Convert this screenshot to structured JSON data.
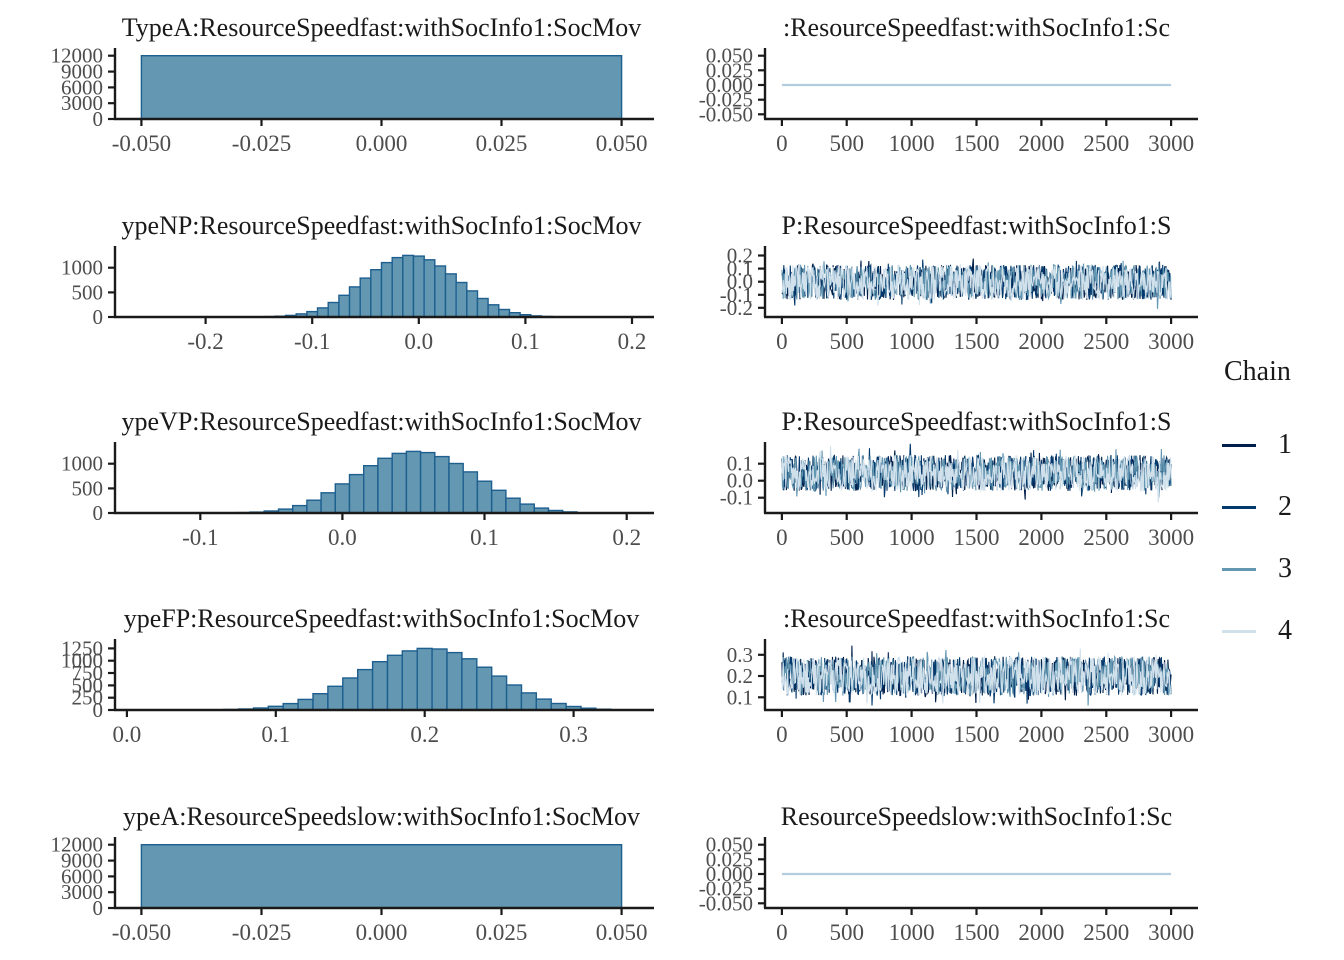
{
  "figure": {
    "background": "#ffffff",
    "description": "MCMC posterior diagnostics: histograms (left) and trace plots (right) for 5 parameters, 4 chains"
  },
  "colors": {
    "hist_fill": "#6497b1",
    "hist_stroke": "#1d5f8f",
    "axis": "#1a1a1a",
    "tick_label": "#4d4d4d",
    "title": "#1a1a1a",
    "flat_line": "#b3cde0",
    "chains": [
      "#011f4b",
      "#03396c",
      "#6497b1",
      "#d1e1ec"
    ]
  },
  "legend": {
    "title": "Chain",
    "items": [
      {
        "label": "1",
        "color": "#011f4b"
      },
      {
        "label": "2",
        "color": "#03396c"
      },
      {
        "label": "3",
        "color": "#6497b1"
      },
      {
        "label": "4",
        "color": "#d1e1ec"
      }
    ]
  },
  "chart_data": [
    {
      "id": "hist-row1",
      "type": "histogram",
      "row": 0,
      "col": "left",
      "title": "TypeA:ResourceSpeedfast:withSocInfo1:SocMov",
      "xlim": [
        -0.0555,
        0.0555
      ],
      "ylim": [
        0,
        12900
      ],
      "xticks": [
        -0.05,
        -0.025,
        0.0,
        0.025,
        0.05
      ],
      "xtick_labels": [
        "-0.050",
        "-0.025",
        "0.000",
        "0.025",
        "0.050"
      ],
      "yticks": [
        0,
        3000,
        6000,
        9000,
        12000
      ],
      "ytick_labels": [
        "0",
        "3000",
        "6000",
        "9000",
        "12000"
      ],
      "bins": {
        "start": -0.05,
        "width": 0.1,
        "counts": [
          12000
        ]
      }
    },
    {
      "id": "trace-row1",
      "type": "trace",
      "row": 0,
      "col": "right",
      "title": ":ResourceSpeedfast:withSocInfo1:Sc",
      "xlim": [
        -130,
        3130
      ],
      "ylim": [
        -0.058,
        0.058
      ],
      "xticks": [
        0,
        500,
        1000,
        1500,
        2000,
        2500,
        3000
      ],
      "xtick_labels": [
        "0",
        "500",
        "1000",
        "1500",
        "2000",
        "2500",
        "3000"
      ],
      "yticks": [
        0.05,
        0.025,
        0.0,
        -0.025,
        -0.05
      ],
      "ytick_labels": [
        "0.050",
        "0.025",
        "0.000",
        "-0.025",
        "-0.050"
      ],
      "series": {
        "flat": true,
        "center": 0.0,
        "amplitude": 0.0,
        "x_range": [
          0,
          3000
        ],
        "n_iterations": 3000,
        "n_chains": 4,
        "seed": 11
      }
    },
    {
      "id": "hist-row2",
      "type": "histogram",
      "row": 1,
      "col": "left",
      "title": "ypeNP:ResourceSpeedfast:withSocInfo1:SocMov",
      "xlim": [
        -0.285,
        0.215
      ],
      "ylim": [
        0,
        1380
      ],
      "xticks": [
        -0.2,
        -0.1,
        0.0,
        0.1,
        0.2
      ],
      "xtick_labels": [
        "-0.2",
        "-0.1",
        "0.0",
        "0.1",
        "0.2"
      ],
      "yticks": [
        0,
        500,
        1000
      ],
      "ytick_labels": [
        "0",
        "500",
        "1000"
      ],
      "bins": {
        "start": -0.155,
        "width": 0.01,
        "counts": [
          4,
          8,
          16,
          32,
          62,
          110,
          185,
          295,
          440,
          610,
          790,
          960,
          1105,
          1205,
          1250,
          1235,
          1160,
          1035,
          875,
          700,
          530,
          375,
          248,
          152,
          88,
          47,
          23,
          11,
          5,
          2
        ]
      }
    },
    {
      "id": "trace-row2",
      "type": "trace",
      "row": 1,
      "col": "right",
      "title": "P:ResourceSpeedfast:withSocInfo1:S",
      "xlim": [
        -130,
        3130
      ],
      "ylim": [
        -0.27,
        0.25
      ],
      "xticks": [
        0,
        500,
        1000,
        1500,
        2000,
        2500,
        3000
      ],
      "xtick_labels": [
        "0",
        "500",
        "1000",
        "1500",
        "2000",
        "2500",
        "3000"
      ],
      "yticks": [
        0.2,
        0.1,
        0.0,
        -0.1,
        -0.2
      ],
      "ytick_labels": [
        "0.2",
        "0.1",
        "0.0",
        "-0.1",
        "-0.2"
      ],
      "series": {
        "flat": false,
        "center": -0.005,
        "amplitude": 0.135,
        "x_range": [
          0,
          3000
        ],
        "n_iterations": 3000,
        "n_chains": 4,
        "seed": 21
      }
    },
    {
      "id": "hist-row3",
      "type": "histogram",
      "row": 2,
      "col": "left",
      "title": "ypeVP:ResourceSpeedfast:withSocInfo1:SocMov",
      "xlim": [
        -0.16,
        0.215
      ],
      "ylim": [
        0,
        1380
      ],
      "xticks": [
        -0.1,
        0.0,
        0.1,
        0.2
      ],
      "xtick_labels": [
        "-0.1",
        "0.0",
        "0.1",
        "0.2"
      ],
      "yticks": [
        0,
        500,
        1000
      ],
      "ytick_labels": [
        "0",
        "500",
        "1000"
      ],
      "bins": {
        "start": -0.075,
        "width": 0.01,
        "counts": [
          8,
          18,
          40,
          80,
          150,
          260,
          410,
          590,
          780,
          960,
          1110,
          1210,
          1250,
          1225,
          1145,
          1005,
          835,
          645,
          460,
          300,
          180,
          100,
          50,
          22
        ]
      }
    },
    {
      "id": "trace-row3",
      "type": "trace",
      "row": 2,
      "col": "right",
      "title": "P:ResourceSpeedfast:withSocInfo1:S",
      "xlim": [
        -130,
        3130
      ],
      "ylim": [
        -0.19,
        0.21
      ],
      "xticks": [
        0,
        500,
        1000,
        1500,
        2000,
        2500,
        3000
      ],
      "xtick_labels": [
        "0",
        "500",
        "1000",
        "1500",
        "2000",
        "2500",
        "3000"
      ],
      "yticks": [
        0.1,
        0.0,
        -0.1
      ],
      "ytick_labels": [
        "0.1",
        "0.0",
        "-0.1"
      ],
      "series": {
        "flat": false,
        "center": 0.045,
        "amplitude": 0.105,
        "x_range": [
          0,
          3000
        ],
        "n_iterations": 3000,
        "n_chains": 4,
        "seed": 31
      }
    },
    {
      "id": "hist-row4",
      "type": "histogram",
      "row": 3,
      "col": "left",
      "title": "ypeFP:ResourceSpeedfast:withSocInfo1:SocMov",
      "xlim": [
        -0.008,
        0.35
      ],
      "ylim": [
        0,
        1380
      ],
      "xticks": [
        0.0,
        0.1,
        0.2,
        0.3
      ],
      "xtick_labels": [
        "0.0",
        "0.1",
        "0.2",
        "0.3"
      ],
      "yticks": [
        0,
        250,
        500,
        750,
        1000,
        1250
      ],
      "ytick_labels": [
        "0",
        "250",
        "500",
        "750",
        "1000",
        "1250"
      ],
      "bins": {
        "start": 0.055,
        "width": 0.01,
        "counts": [
          5,
          10,
          20,
          40,
          75,
          130,
          215,
          330,
          480,
          650,
          820,
          980,
          1110,
          1200,
          1250,
          1238,
          1165,
          1040,
          868,
          688,
          508,
          348,
          222,
          132,
          72,
          36,
          16,
          7
        ]
      }
    },
    {
      "id": "trace-row4",
      "type": "trace",
      "row": 3,
      "col": "right",
      "title": ":ResourceSpeedfast:withSocInfo1:Sc",
      "xlim": [
        -130,
        3130
      ],
      "ylim": [
        0.04,
        0.36
      ],
      "xticks": [
        0,
        500,
        1000,
        1500,
        2000,
        2500,
        3000
      ],
      "xtick_labels": [
        "0",
        "500",
        "1000",
        "1500",
        "2000",
        "2500",
        "3000"
      ],
      "yticks": [
        0.3,
        0.2,
        0.1
      ],
      "ytick_labels": [
        "0.3",
        "0.2",
        "0.1"
      ],
      "series": {
        "flat": false,
        "center": 0.2,
        "amplitude": 0.092,
        "x_range": [
          0,
          3000
        ],
        "n_iterations": 3000,
        "n_chains": 4,
        "seed": 41
      }
    },
    {
      "id": "hist-row5",
      "type": "histogram",
      "row": 4,
      "col": "left",
      "title": "ypeA:ResourceSpeedslow:withSocInfo1:SocMov",
      "xlim": [
        -0.0555,
        0.0555
      ],
      "ylim": [
        0,
        12900
      ],
      "xticks": [
        -0.05,
        -0.025,
        0.0,
        0.025,
        0.05
      ],
      "xtick_labels": [
        "-0.050",
        "-0.025",
        "0.000",
        "0.025",
        "0.050"
      ],
      "yticks": [
        0,
        3000,
        6000,
        9000,
        12000
      ],
      "ytick_labels": [
        "0",
        "3000",
        "6000",
        "9000",
        "12000"
      ],
      "bins": {
        "start": -0.05,
        "width": 0.1,
        "counts": [
          12000
        ]
      }
    },
    {
      "id": "trace-row5",
      "type": "trace",
      "row": 4,
      "col": "right",
      "title": "ResourceSpeedslow:withSocInfo1:Sc",
      "xlim": [
        -130,
        3130
      ],
      "ylim": [
        -0.058,
        0.058
      ],
      "xticks": [
        0,
        500,
        1000,
        1500,
        2000,
        2500,
        3000
      ],
      "xtick_labels": [
        "0",
        "500",
        "1000",
        "1500",
        "2000",
        "2500",
        "3000"
      ],
      "yticks": [
        0.05,
        0.025,
        0.0,
        -0.025,
        -0.05
      ],
      "ytick_labels": [
        "0.050",
        "0.025",
        "0.000",
        "-0.025",
        "-0.050"
      ],
      "series": {
        "flat": true,
        "center": 0.0,
        "amplitude": 0.0,
        "x_range": [
          0,
          3000
        ],
        "n_iterations": 3000,
        "n_chains": 4,
        "seed": 51
      }
    }
  ]
}
